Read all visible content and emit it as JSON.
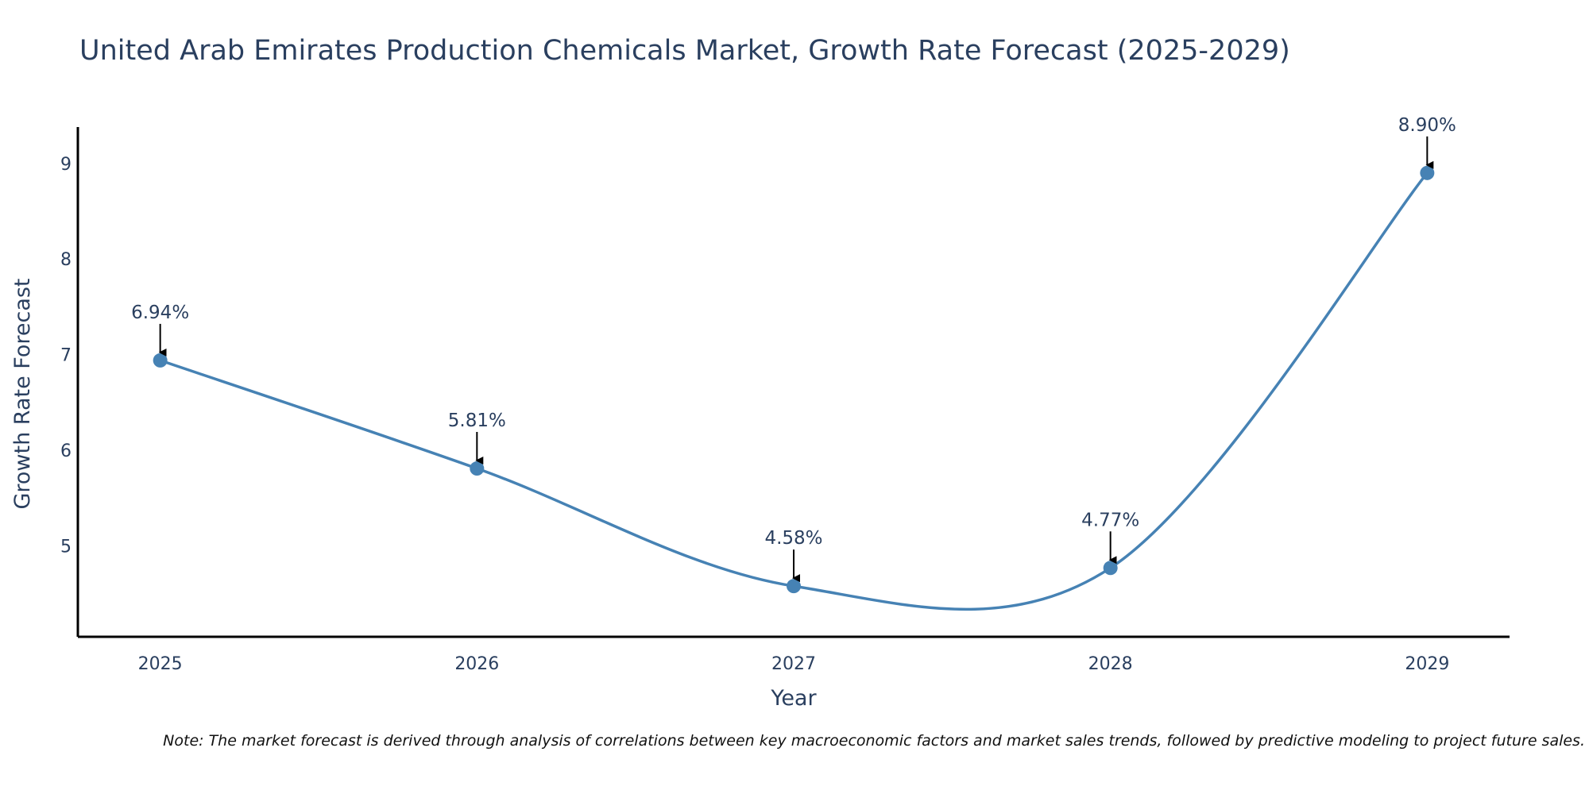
{
  "chart_data": {
    "type": "line",
    "title": "United Arab Emirates Production Chemicals Market, Growth Rate Forecast (2025-2029)",
    "xlabel": "Year",
    "ylabel": "Growth Rate Forecast",
    "categories": [
      "2025",
      "2026",
      "2027",
      "2028",
      "2029"
    ],
    "series": [
      {
        "name": "Growth Rate Forecast",
        "values": [
          6.94,
          5.81,
          4.58,
          4.77,
          8.9
        ]
      }
    ],
    "annotations": [
      "6.94%",
      "5.81%",
      "4.58%",
      "4.77%",
      "8.90%"
    ],
    "yticks": [
      5,
      6,
      7,
      8,
      9
    ],
    "ylim": [
      4.05,
      9.38
    ],
    "xlim": [
      -0.26,
      4.26
    ],
    "grid": false,
    "line_shape": "spline",
    "note": "Note: The market forecast is derived through analysis of correlations between key macroeconomic factors and market sales trends, followed by predictive modeling to project future sales."
  },
  "colors": {
    "line": "#4682b4",
    "marker": "#4682b4",
    "arrow": "#000000",
    "text": "#2a3f5f",
    "axis": "#000000"
  }
}
